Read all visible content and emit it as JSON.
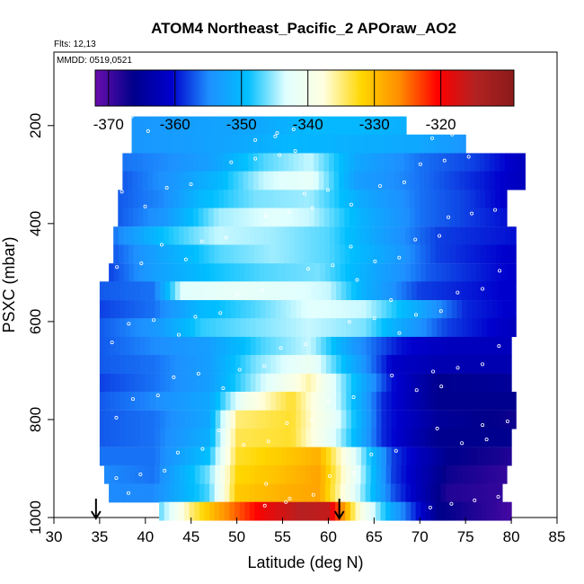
{
  "chart_data": {
    "type": "heatmap",
    "title": "ATOM4 Northeast_Pacific_2 APOraw_AO2",
    "flights_note": "Flts: 12,13",
    "date_note": "MMDD: 0519,0521",
    "xlabel": "Latitude (deg N)",
    "ylabel": "PSXC (mbar)",
    "xlim": [
      30,
      85
    ],
    "ylim": [
      1000,
      50
    ],
    "y_reversed": true,
    "grid": false,
    "x_ticks": [
      30,
      35,
      40,
      45,
      50,
      55,
      60,
      65,
      70,
      75,
      80,
      85
    ],
    "y_ticks": [
      200,
      400,
      600,
      800,
      1000
    ],
    "colorbar": {
      "placement": "top",
      "range": [
        -372,
        -309
      ],
      "ticks": [
        -370,
        -360,
        -350,
        -340,
        -330,
        -320
      ],
      "colors": [
        "#6a0dad",
        "#00008b",
        "#0000cd",
        "#1e90ff",
        "#00bfff",
        "#e0ffff",
        "#ffffe0",
        "#ffd700",
        "#ff8c00",
        "#ff0000",
        "#b22222",
        "#8b1a1a"
      ]
    },
    "arrows_lat": [
      34.6,
      61.2
    ],
    "layers": [
      {
        "p": 200,
        "lat_min": 38.5,
        "lat_max": 68.5,
        "knots": [
          [
            38.5,
            -354
          ],
          [
            45,
            -353
          ],
          [
            52,
            -352
          ],
          [
            58,
            -350
          ],
          [
            64,
            -350
          ],
          [
            68.5,
            -351
          ]
        ]
      },
      {
        "p": 237,
        "lat_min": 38.5,
        "lat_max": 75,
        "knots": [
          [
            38.5,
            -354
          ],
          [
            45,
            -353
          ],
          [
            50,
            -352
          ],
          [
            56,
            -350
          ],
          [
            63,
            -351
          ],
          [
            70,
            -352
          ],
          [
            75,
            -354
          ]
        ]
      },
      {
        "p": 275,
        "lat_min": 37.5,
        "lat_max": 81.5,
        "knots": [
          [
            37.5,
            -356
          ],
          [
            42,
            -355
          ],
          [
            47,
            -353
          ],
          [
            53,
            -347
          ],
          [
            58,
            -344
          ],
          [
            63,
            -352
          ],
          [
            70,
            -356
          ],
          [
            76,
            -358
          ],
          [
            81.5,
            -362
          ]
        ]
      },
      {
        "p": 312,
        "lat_min": 37.5,
        "lat_max": 81.5,
        "knots": [
          [
            37.5,
            -357
          ],
          [
            43,
            -354
          ],
          [
            48,
            -350
          ],
          [
            53,
            -344
          ],
          [
            58,
            -342
          ],
          [
            63,
            -353
          ],
          [
            70,
            -356
          ],
          [
            76,
            -359
          ],
          [
            81.5,
            -362
          ]
        ]
      },
      {
        "p": 350,
        "lat_min": 37,
        "lat_max": 79.5,
        "knots": [
          [
            37,
            -357
          ],
          [
            42,
            -355
          ],
          [
            46,
            -350
          ],
          [
            52,
            -346
          ],
          [
            58,
            -345
          ],
          [
            64,
            -352
          ],
          [
            70,
            -356
          ],
          [
            75,
            -358
          ],
          [
            79.5,
            -361
          ]
        ]
      },
      {
        "p": 387,
        "lat_min": 37,
        "lat_max": 79.5,
        "knots": [
          [
            37,
            -357
          ],
          [
            42,
            -354
          ],
          [
            48,
            -345
          ],
          [
            54,
            -343
          ],
          [
            58,
            -344
          ],
          [
            64,
            -351
          ],
          [
            70,
            -356
          ],
          [
            75,
            -358
          ],
          [
            79.5,
            -360
          ]
        ]
      },
      {
        "p": 425,
        "lat_min": 36.5,
        "lat_max": 80.5,
        "knots": [
          [
            36.5,
            -356
          ],
          [
            42,
            -349
          ],
          [
            48,
            -344
          ],
          [
            54,
            -345
          ],
          [
            60,
            -347
          ],
          [
            66,
            -353
          ],
          [
            72,
            -358
          ],
          [
            80.5,
            -360
          ]
        ]
      },
      {
        "p": 462,
        "lat_min": 36.5,
        "lat_max": 80.5,
        "knots": [
          [
            36.5,
            -357
          ],
          [
            42,
            -352
          ],
          [
            48,
            -347
          ],
          [
            54,
            -345
          ],
          [
            60,
            -347
          ],
          [
            66,
            -352
          ],
          [
            72,
            -358
          ],
          [
            80.5,
            -361
          ]
        ]
      },
      {
        "p": 500,
        "lat_min": 36,
        "lat_max": 80.5,
        "knots": [
          [
            36,
            -358
          ],
          [
            41,
            -353
          ],
          [
            47,
            -349
          ],
          [
            53,
            -347
          ],
          [
            59,
            -346
          ],
          [
            65,
            -352
          ],
          [
            71,
            -357
          ],
          [
            80.5,
            -361
          ]
        ]
      },
      {
        "p": 537,
        "lat_min": 35,
        "lat_max": 80.5,
        "knots": [
          [
            35,
            -357
          ],
          [
            41,
            -356
          ],
          [
            44,
            -343
          ],
          [
            50,
            -342
          ],
          [
            56,
            -343
          ],
          [
            60,
            -344
          ],
          [
            64,
            -351
          ],
          [
            70,
            -358
          ],
          [
            80.5,
            -361
          ]
        ]
      },
      {
        "p": 575,
        "lat_min": 35,
        "lat_max": 80.5,
        "knots": [
          [
            35,
            -358
          ],
          [
            41,
            -356
          ],
          [
            46,
            -350
          ],
          [
            52,
            -347
          ],
          [
            58,
            -343
          ],
          [
            64,
            -344
          ],
          [
            70,
            -352
          ],
          [
            75,
            -359
          ],
          [
            80.5,
            -361
          ]
        ]
      },
      {
        "p": 612,
        "lat_min": 35,
        "lat_max": 80.5,
        "knots": [
          [
            35,
            -357
          ],
          [
            41,
            -354
          ],
          [
            46,
            -348
          ],
          [
            52,
            -346
          ],
          [
            58,
            -344
          ],
          [
            64,
            -346
          ],
          [
            68,
            -352
          ],
          [
            73,
            -358
          ],
          [
            80.5,
            -362
          ]
        ]
      },
      {
        "p": 650,
        "lat_min": 35,
        "lat_max": 80,
        "knots": [
          [
            35,
            -357
          ],
          [
            41,
            -355
          ],
          [
            47,
            -353
          ],
          [
            53,
            -347
          ],
          [
            58,
            -344
          ],
          [
            63,
            -354
          ],
          [
            68,
            -360
          ],
          [
            73,
            -362
          ],
          [
            80,
            -362
          ]
        ]
      },
      {
        "p": 687,
        "lat_min": 35,
        "lat_max": 80,
        "knots": [
          [
            35,
            -357
          ],
          [
            41,
            -356
          ],
          [
            47,
            -353
          ],
          [
            52,
            -346
          ],
          [
            58,
            -341
          ],
          [
            62,
            -350
          ],
          [
            67,
            -361
          ],
          [
            72,
            -363
          ],
          [
            80,
            -363
          ]
        ]
      },
      {
        "p": 725,
        "lat_min": 35,
        "lat_max": 80,
        "knots": [
          [
            35,
            -358
          ],
          [
            41,
            -356
          ],
          [
            47,
            -353
          ],
          [
            52,
            -345
          ],
          [
            58,
            -336
          ],
          [
            62,
            -347
          ],
          [
            67,
            -360
          ],
          [
            72,
            -366
          ],
          [
            80,
            -365
          ]
        ]
      },
      {
        "p": 762,
        "lat_min": 35,
        "lat_max": 80.5,
        "knots": [
          [
            35,
            -357
          ],
          [
            41,
            -355
          ],
          [
            47,
            -352
          ],
          [
            51,
            -340
          ],
          [
            56,
            -333
          ],
          [
            61,
            -344
          ],
          [
            66,
            -359
          ],
          [
            72,
            -366
          ],
          [
            80.5,
            -366
          ]
        ]
      },
      {
        "p": 800,
        "lat_min": 35,
        "lat_max": 80.5,
        "knots": [
          [
            35,
            -357
          ],
          [
            41,
            -356
          ],
          [
            47,
            -352
          ],
          [
            50,
            -335
          ],
          [
            56,
            -333
          ],
          [
            61,
            -343
          ],
          [
            66,
            -359
          ],
          [
            72,
            -365
          ],
          [
            80.5,
            -367
          ]
        ]
      },
      {
        "p": 837,
        "lat_min": 35,
        "lat_max": 80,
        "knots": [
          [
            35,
            -357
          ],
          [
            41,
            -356
          ],
          [
            47,
            -351
          ],
          [
            50,
            -334
          ],
          [
            56,
            -333
          ],
          [
            61,
            -344
          ],
          [
            66,
            -359
          ],
          [
            72,
            -366
          ],
          [
            80,
            -366
          ]
        ]
      },
      {
        "p": 875,
        "lat_min": 35,
        "lat_max": 80,
        "knots": [
          [
            35,
            -356
          ],
          [
            41,
            -356
          ],
          [
            47,
            -349
          ],
          [
            50,
            -333
          ],
          [
            55,
            -331
          ],
          [
            59,
            -329
          ],
          [
            63,
            -343
          ],
          [
            67,
            -358
          ],
          [
            73,
            -366
          ],
          [
            80,
            -368
          ]
        ]
      },
      {
        "p": 912,
        "lat_min": 35.5,
        "lat_max": 79.5,
        "knots": [
          [
            35.5,
            -355
          ],
          [
            41,
            -356
          ],
          [
            47,
            -346
          ],
          [
            50,
            -332
          ],
          [
            55,
            -330
          ],
          [
            59,
            -328
          ],
          [
            63,
            -342
          ],
          [
            67,
            -358
          ],
          [
            73,
            -367
          ],
          [
            79.5,
            -369
          ]
        ]
      },
      {
        "p": 950,
        "lat_min": 36,
        "lat_max": 79,
        "knots": [
          [
            36,
            -355
          ],
          [
            41,
            -355
          ],
          [
            47,
            -347
          ],
          [
            50,
            -331
          ],
          [
            55,
            -329
          ],
          [
            59,
            -328
          ],
          [
            63,
            -343
          ],
          [
            67,
            -357
          ],
          [
            73,
            -368
          ],
          [
            79,
            -369
          ]
        ]
      },
      {
        "p": 987,
        "lat_min": 41.5,
        "lat_max": 80,
        "knots": [
          [
            41.5,
            -347
          ],
          [
            45,
            -335
          ],
          [
            49,
            -326
          ],
          [
            53,
            -319
          ],
          [
            57,
            -315
          ],
          [
            60,
            -316
          ],
          [
            63,
            -336
          ],
          [
            67,
            -352
          ],
          [
            72,
            -366
          ],
          [
            80,
            -370
          ]
        ]
      }
    ]
  }
}
